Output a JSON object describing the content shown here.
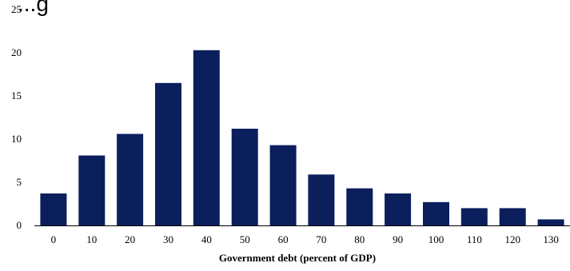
{
  "chart_data": {
    "type": "bar",
    "title": "...g",
    "xlabel": "Government debt (percent of GDP)",
    "ylabel": "",
    "categories": [
      "0",
      "10",
      "20",
      "30",
      "40",
      "50",
      "60",
      "70",
      "80",
      "90",
      "100",
      "110",
      "120",
      "130"
    ],
    "values": [
      3.7,
      8.1,
      10.6,
      16.5,
      20.3,
      11.2,
      9.3,
      5.9,
      4.3,
      3.7,
      2.7,
      2.0,
      2.0,
      0.7
    ],
    "ylim": [
      0,
      25
    ],
    "yticks": [
      "0",
      "5",
      "10",
      "15",
      "20",
      "25"
    ],
    "grid": false,
    "colors": {
      "bar": "#0b1f5c",
      "axis": "#000000"
    }
  }
}
